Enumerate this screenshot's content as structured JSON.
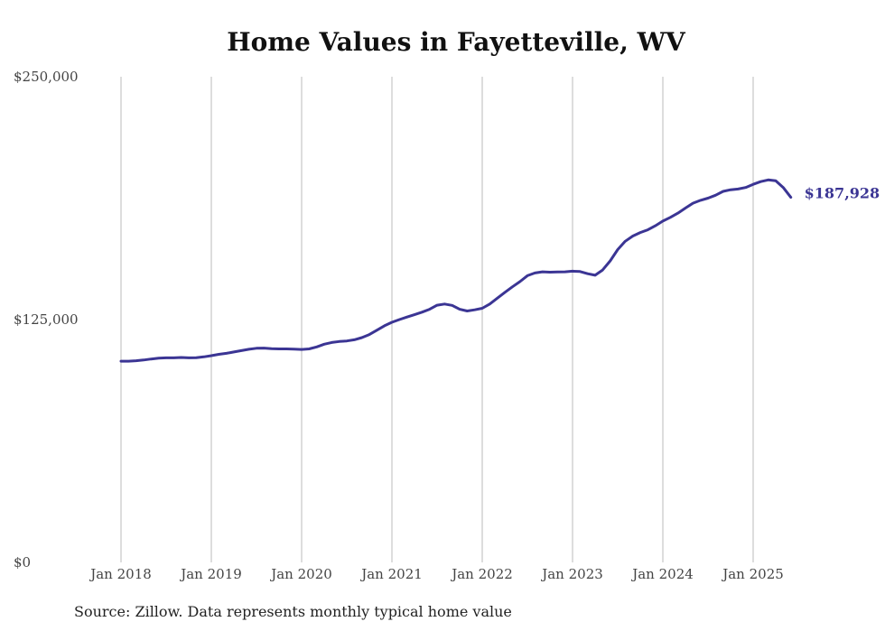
{
  "chart_data": {
    "type": "line",
    "title": "Home Values in Fayetteville, WV",
    "xlabel": "",
    "ylabel": "",
    "ylim": [
      0,
      250000
    ],
    "yticks": [
      0,
      125000,
      250000
    ],
    "ytick_labels": [
      "$0",
      "$125,000",
      "$250,000"
    ],
    "xtick_labels": [
      "Jan 2018",
      "Jan 2019",
      "Jan 2020",
      "Jan 2021",
      "Jan 2022",
      "Jan 2023",
      "Jan 2024",
      "Jan 2025"
    ],
    "x_start": "Jan 2018",
    "x_end": "Jun 2025",
    "grid": "vertical",
    "line_color": "#3b3594",
    "end_label": "$187,928",
    "series": [
      {
        "name": "Typical home value",
        "frequency": "monthly",
        "values": [
          103600,
          103600,
          103800,
          104200,
          104700,
          105100,
          105300,
          105300,
          105500,
          105300,
          105400,
          105800,
          106400,
          107100,
          107600,
          108300,
          109000,
          109700,
          110200,
          110300,
          110000,
          109900,
          109900,
          109800,
          109600,
          109900,
          110900,
          112300,
          113200,
          113700,
          114000,
          114600,
          115700,
          117300,
          119500,
          121800,
          123600,
          125000,
          126300,
          127500,
          128800,
          130300,
          132400,
          133000,
          132300,
          130300,
          129400,
          130000,
          130800,
          133000,
          136000,
          139000,
          141800,
          144500,
          147600,
          149000,
          149600,
          149400,
          149500,
          149600,
          149900,
          149700,
          148600,
          147800,
          150500,
          155200,
          161000,
          165300,
          168000,
          169800,
          171200,
          173300,
          175700,
          177600,
          179800,
          182400,
          184900,
          186400,
          187500,
          189000,
          191000,
          191800,
          192200,
          193000,
          194600,
          196000,
          196900,
          196400,
          193000,
          187928
        ]
      }
    ]
  },
  "source": "Source: Zillow. Data represents monthly typical home value"
}
